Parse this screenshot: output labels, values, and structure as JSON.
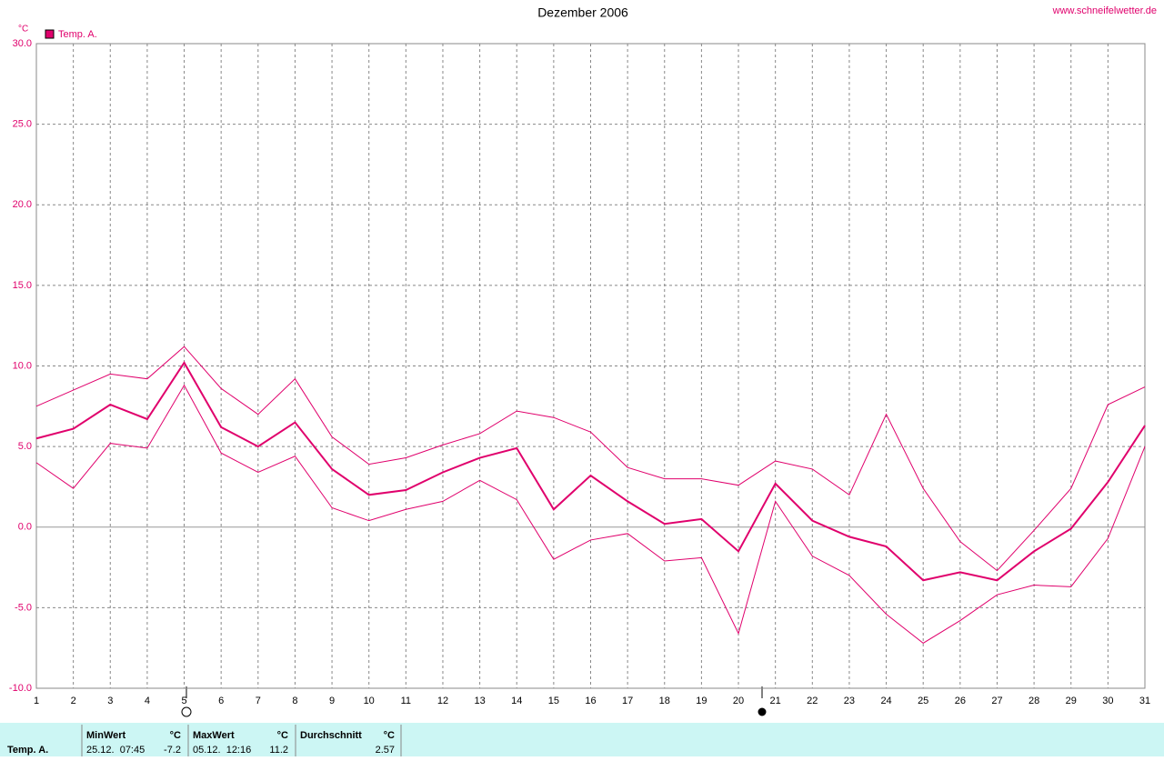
{
  "chart_data": {
    "type": "line",
    "title": "Dezember 2006",
    "source": "www.schneifelwetter.de",
    "y_unit": "°C",
    "x": [
      1,
      2,
      3,
      4,
      5,
      6,
      7,
      8,
      9,
      10,
      11,
      12,
      13,
      14,
      15,
      16,
      17,
      18,
      19,
      20,
      21,
      22,
      23,
      24,
      25,
      26,
      27,
      28,
      29,
      30,
      31
    ],
    "xlim": [
      1,
      31
    ],
    "xticks": [
      1,
      2,
      3,
      4,
      5,
      6,
      7,
      8,
      9,
      10,
      11,
      12,
      13,
      14,
      15,
      16,
      17,
      18,
      19,
      20,
      21,
      22,
      23,
      24,
      25,
      26,
      27,
      28,
      29,
      30,
      31
    ],
    "ylim": [
      -10,
      30
    ],
    "yticks": [
      {
        "value": -10,
        "label": "-10.0"
      },
      {
        "value": -5,
        "label": "-5.0"
      },
      {
        "value": 0,
        "label": "0.0"
      },
      {
        "value": 5,
        "label": "5.0"
      },
      {
        "value": 10,
        "label": "10.0"
      },
      {
        "value": 15,
        "label": "15.0"
      },
      {
        "value": 20,
        "label": "20.0"
      },
      {
        "value": 25,
        "label": "25.0"
      },
      {
        "value": 30,
        "label": "30.0"
      }
    ],
    "grid": true,
    "legend": "top-left",
    "series": [
      {
        "name": "Temp. A.",
        "color": "#e0006c",
        "values": [
          5.5,
          6.1,
          7.6,
          6.7,
          10.2,
          6.2,
          5.0,
          6.5,
          3.6,
          2.0,
          2.3,
          3.4,
          4.3,
          4.9,
          1.1,
          3.2,
          1.6,
          0.2,
          0.5,
          -1.5,
          2.7,
          0.4,
          -0.6,
          -1.2,
          -3.3,
          -2.8,
          -3.3,
          -1.5,
          -0.1,
          2.8,
          6.3
        ]
      },
      {
        "color": "#e0006c",
        "values": [
          7.5,
          8.5,
          9.5,
          9.2,
          11.2,
          8.6,
          7.0,
          9.2,
          5.6,
          3.9,
          4.3,
          5.1,
          5.8,
          7.2,
          6.8,
          5.9,
          3.7,
          3.0,
          3.0,
          2.6,
          4.1,
          3.6,
          2.0,
          7.0,
          2.4,
          -0.9,
          -2.7,
          -0.2,
          2.4,
          7.6,
          8.7
        ]
      },
      {
        "color": "#e0006c",
        "values": [
          4.0,
          2.4,
          5.2,
          4.9,
          8.8,
          4.6,
          3.4,
          4.4,
          1.2,
          0.4,
          1.1,
          1.6,
          2.9,
          1.7,
          -2.0,
          -0.8,
          -0.4,
          -2.1,
          -1.9,
          -6.6,
          1.6,
          -1.8,
          -3.0,
          -5.4,
          -7.2,
          -5.8,
          -4.2,
          -3.6,
          -3.7,
          -0.7,
          5.0
        ]
      }
    ]
  },
  "table": {
    "row_label": "Temp. A.",
    "columns": [
      {
        "header": "MinWert",
        "unit": "°C",
        "time": "25.12.  07:45",
        "value": "-7.2"
      },
      {
        "header": "MaxWert",
        "unit": "°C",
        "time": "05.12.  12:16",
        "value": "11.2"
      },
      {
        "header": "Durchschnitt",
        "unit": "°C",
        "value": "2.57"
      }
    ]
  }
}
